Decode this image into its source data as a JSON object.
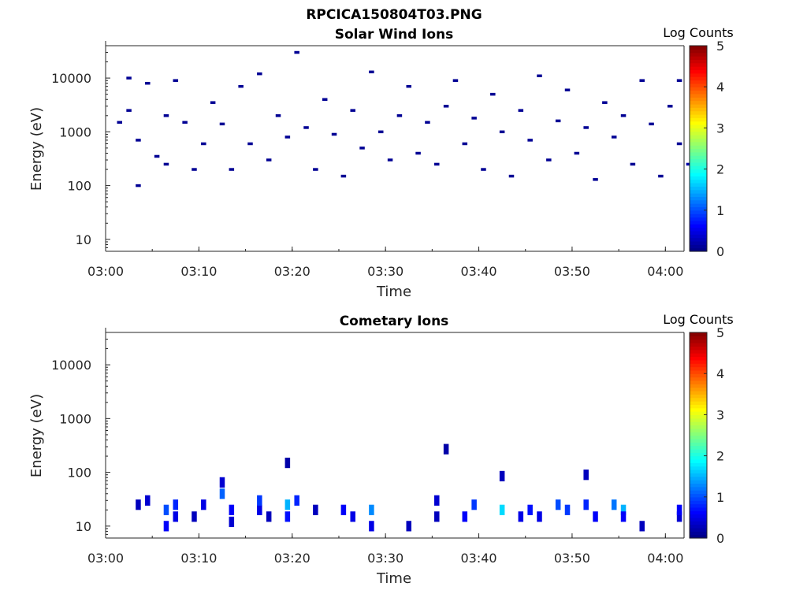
{
  "figure": {
    "filename": "RPCICA150804T03.PNG"
  },
  "colorbar": {
    "label": "Log Counts",
    "ticks": [
      "0",
      "1",
      "2",
      "3",
      "4",
      "5"
    ],
    "range": [
      0,
      5
    ],
    "colormap": "jet"
  },
  "chart_data": [
    {
      "type": "heatmap",
      "title": "Solar Wind Ions",
      "xlabel": "Time",
      "ylabel": "Energy (eV)",
      "y_scale": "log",
      "ylim": [
        6,
        40000
      ],
      "xlim": [
        "03:00",
        "04:02"
      ],
      "x_ticks": [
        "03:00",
        "03:10",
        "03:20",
        "03:30",
        "03:40",
        "03:50",
        "04:00"
      ],
      "y_ticks": [
        "10",
        "100",
        "1000",
        "10000"
      ],
      "value_units": "log10 counts",
      "description_of_values": "sparse single-count pixels scattered between ~10 eV and ~10 keV",
      "cells": [
        {
          "t": "03:01",
          "e": 1500,
          "v": 0.1
        },
        {
          "t": "03:02",
          "e": 2500,
          "v": 0.1
        },
        {
          "t": "03:02",
          "e": 10000,
          "v": 0.1
        },
        {
          "t": "03:03",
          "e": 700,
          "v": 0.1
        },
        {
          "t": "03:03",
          "e": 100,
          "v": 0.1
        },
        {
          "t": "03:04",
          "e": 8000,
          "v": 0.1
        },
        {
          "t": "03:05",
          "e": 350,
          "v": 0.1
        },
        {
          "t": "03:06",
          "e": 2000,
          "v": 0.1
        },
        {
          "t": "03:06",
          "e": 250,
          "v": 0.1
        },
        {
          "t": "03:07",
          "e": 9000,
          "v": 0.1
        },
        {
          "t": "03:08",
          "e": 1500,
          "v": 0.1
        },
        {
          "t": "03:09",
          "e": 200,
          "v": 0.1
        },
        {
          "t": "03:10",
          "e": 600,
          "v": 0.1
        },
        {
          "t": "03:11",
          "e": 3500,
          "v": 0.1
        },
        {
          "t": "03:12",
          "e": 1400,
          "v": 0.1
        },
        {
          "t": "03:13",
          "e": 200,
          "v": 0.1
        },
        {
          "t": "03:14",
          "e": 7000,
          "v": 0.1
        },
        {
          "t": "03:15",
          "e": 600,
          "v": 0.1
        },
        {
          "t": "03:16",
          "e": 12000,
          "v": 0.1
        },
        {
          "t": "03:17",
          "e": 300,
          "v": 0.1
        },
        {
          "t": "03:18",
          "e": 2000,
          "v": 0.1
        },
        {
          "t": "03:19",
          "e": 800,
          "v": 0.1
        },
        {
          "t": "03:20",
          "e": 30000,
          "v": 0.1
        },
        {
          "t": "03:21",
          "e": 1200,
          "v": 0.1
        },
        {
          "t": "03:22",
          "e": 200,
          "v": 0.1
        },
        {
          "t": "03:23",
          "e": 4000,
          "v": 0.1
        },
        {
          "t": "03:24",
          "e": 900,
          "v": 0.1
        },
        {
          "t": "03:25",
          "e": 150,
          "v": 0.1
        },
        {
          "t": "03:26",
          "e": 2500,
          "v": 0.1
        },
        {
          "t": "03:27",
          "e": 500,
          "v": 0.1
        },
        {
          "t": "03:28",
          "e": 13000,
          "v": 0.1
        },
        {
          "t": "03:29",
          "e": 1000,
          "v": 0.1
        },
        {
          "t": "03:30",
          "e": 300,
          "v": 0.1
        },
        {
          "t": "03:31",
          "e": 2000,
          "v": 0.1
        },
        {
          "t": "03:32",
          "e": 7000,
          "v": 0.1
        },
        {
          "t": "03:33",
          "e": 400,
          "v": 0.1
        },
        {
          "t": "03:34",
          "e": 1500,
          "v": 0.1
        },
        {
          "t": "03:35",
          "e": 250,
          "v": 0.1
        },
        {
          "t": "03:36",
          "e": 3000,
          "v": 0.1
        },
        {
          "t": "03:37",
          "e": 9000,
          "v": 0.1
        },
        {
          "t": "03:38",
          "e": 600,
          "v": 0.1
        },
        {
          "t": "03:39",
          "e": 1800,
          "v": 0.1
        },
        {
          "t": "03:40",
          "e": 200,
          "v": 0.1
        },
        {
          "t": "03:41",
          "e": 5000,
          "v": 0.1
        },
        {
          "t": "03:42",
          "e": 1000,
          "v": 0.1
        },
        {
          "t": "03:43",
          "e": 150,
          "v": 0.1
        },
        {
          "t": "03:44",
          "e": 2500,
          "v": 0.1
        },
        {
          "t": "03:45",
          "e": 700,
          "v": 0.1
        },
        {
          "t": "03:46",
          "e": 11000,
          "v": 0.1
        },
        {
          "t": "03:47",
          "e": 300,
          "v": 0.1
        },
        {
          "t": "03:48",
          "e": 1600,
          "v": 0.1
        },
        {
          "t": "03:49",
          "e": 6000,
          "v": 0.1
        },
        {
          "t": "03:50",
          "e": 400,
          "v": 0.1
        },
        {
          "t": "03:51",
          "e": 1200,
          "v": 0.1
        },
        {
          "t": "03:52",
          "e": 130,
          "v": 0.1
        },
        {
          "t": "03:53",
          "e": 3500,
          "v": 0.1
        },
        {
          "t": "03:54",
          "e": 800,
          "v": 0.1
        },
        {
          "t": "03:55",
          "e": 2000,
          "v": 0.1
        },
        {
          "t": "03:56",
          "e": 250,
          "v": 0.1
        },
        {
          "t": "03:57",
          "e": 9000,
          "v": 0.1
        },
        {
          "t": "03:58",
          "e": 1400,
          "v": 0.1
        },
        {
          "t": "03:59",
          "e": 150,
          "v": 0.1
        },
        {
          "t": "04:00",
          "e": 3000,
          "v": 0.1
        },
        {
          "t": "04:01",
          "e": 600,
          "v": 0.1
        },
        {
          "t": "04:01",
          "e": 9000,
          "v": 0.1
        },
        {
          "t": "04:02",
          "e": 250,
          "v": 0.2
        }
      ]
    },
    {
      "type": "heatmap",
      "title": "Cometary Ions",
      "xlabel": "Time",
      "ylabel": "Energy (eV)",
      "y_scale": "log",
      "ylim": [
        6,
        40000
      ],
      "xlim": [
        "03:00",
        "04:02"
      ],
      "x_ticks": [
        "03:00",
        "03:10",
        "03:20",
        "03:30",
        "03:40",
        "03:50",
        "04:00"
      ],
      "y_ticks": [
        "10",
        "100",
        "1000",
        "10000"
      ],
      "value_units": "log10 counts",
      "description_of_values": "intermittent bursts of low-energy ions between ~6 and ~40 eV, peak log counts ~1.7",
      "cells": [
        {
          "t": "03:03",
          "e": 25,
          "v": 0.3
        },
        {
          "t": "03:04",
          "e": 30,
          "v": 0.4
        },
        {
          "t": "03:06",
          "e": 20,
          "v": 1.0
        },
        {
          "t": "03:06",
          "e": 10,
          "v": 0.6
        },
        {
          "t": "03:07",
          "e": 25,
          "v": 0.8
        },
        {
          "t": "03:07",
          "e": 15,
          "v": 0.5
        },
        {
          "t": "03:09",
          "e": 15,
          "v": 0.3
        },
        {
          "t": "03:10",
          "e": 25,
          "v": 0.5
        },
        {
          "t": "03:12",
          "e": 40,
          "v": 1.1
        },
        {
          "t": "03:12",
          "e": 65,
          "v": 0.4
        },
        {
          "t": "03:13",
          "e": 20,
          "v": 0.6
        },
        {
          "t": "03:13",
          "e": 12,
          "v": 0.4
        },
        {
          "t": "03:16",
          "e": 20,
          "v": 0.5
        },
        {
          "t": "03:16",
          "e": 30,
          "v": 0.9
        },
        {
          "t": "03:17",
          "e": 15,
          "v": 0.3
        },
        {
          "t": "03:19",
          "e": 25,
          "v": 1.5
        },
        {
          "t": "03:19",
          "e": 15,
          "v": 0.7
        },
        {
          "t": "03:19",
          "e": 150,
          "v": 0.2
        },
        {
          "t": "03:20",
          "e": 30,
          "v": 0.8
        },
        {
          "t": "03:22",
          "e": 20,
          "v": 0.3
        },
        {
          "t": "03:25",
          "e": 20,
          "v": 0.6
        },
        {
          "t": "03:26",
          "e": 15,
          "v": 0.5
        },
        {
          "t": "03:28",
          "e": 20,
          "v": 1.3
        },
        {
          "t": "03:28",
          "e": 10,
          "v": 0.5
        },
        {
          "t": "03:32",
          "e": 10,
          "v": 0.3
        },
        {
          "t": "03:35",
          "e": 15,
          "v": 0.3
        },
        {
          "t": "03:35",
          "e": 30,
          "v": 0.4
        },
        {
          "t": "03:36",
          "e": 270,
          "v": 0.2
        },
        {
          "t": "03:38",
          "e": 15,
          "v": 0.6
        },
        {
          "t": "03:39",
          "e": 25,
          "v": 0.9
        },
        {
          "t": "03:42",
          "e": 20,
          "v": 1.7
        },
        {
          "t": "03:42",
          "e": 85,
          "v": 0.3
        },
        {
          "t": "03:44",
          "e": 15,
          "v": 0.5
        },
        {
          "t": "03:45",
          "e": 20,
          "v": 0.7
        },
        {
          "t": "03:46",
          "e": 15,
          "v": 0.5
        },
        {
          "t": "03:48",
          "e": 25,
          "v": 1.0
        },
        {
          "t": "03:49",
          "e": 20,
          "v": 0.9
        },
        {
          "t": "03:51",
          "e": 25,
          "v": 0.8
        },
        {
          "t": "03:51",
          "e": 90,
          "v": 0.3
        },
        {
          "t": "03:52",
          "e": 15,
          "v": 0.6
        },
        {
          "t": "03:54",
          "e": 25,
          "v": 1.2
        },
        {
          "t": "03:55",
          "e": 20,
          "v": 1.5
        },
        {
          "t": "03:55",
          "e": 15,
          "v": 0.6
        },
        {
          "t": "03:57",
          "e": 10,
          "v": 0.3
        },
        {
          "t": "04:01",
          "e": 15,
          "v": 0.4
        },
        {
          "t": "04:01",
          "e": 20,
          "v": 0.6
        }
      ]
    }
  ]
}
